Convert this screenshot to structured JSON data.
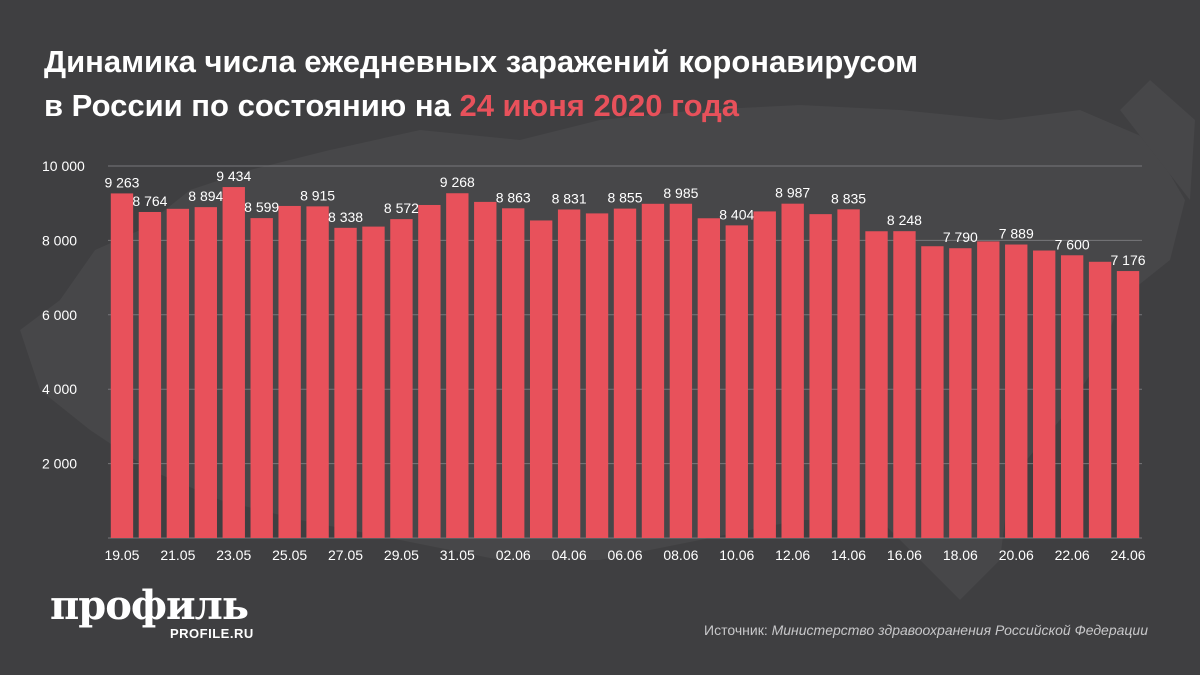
{
  "header": {
    "title_line1": "Динамика числа ежедневных заражений коронавирусом",
    "title_line2_prefix": "в России по состоянию на",
    "title_date": "24 июня 2020 года"
  },
  "colors": {
    "background": "#3f3f41",
    "bar": "#e8515b",
    "accent": "#e8515b",
    "grid": "#77777a",
    "text": "#ffffff"
  },
  "chart_data": {
    "type": "bar",
    "title": "Динамика числа ежедневных заражений коронавирусом в России по состоянию на 24 июня 2020 года",
    "xlabel": "",
    "ylabel": "",
    "ylim": [
      0,
      10000
    ],
    "yticks": [
      2000,
      4000,
      6000,
      8000,
      10000
    ],
    "ytick_labels": [
      "2 000",
      "4 000",
      "6 000",
      "8 000",
      "10 000"
    ],
    "grid": true,
    "categories": [
      "19.05",
      "20.05",
      "21.05",
      "22.05",
      "23.05",
      "24.05",
      "25.05",
      "26.05",
      "27.05",
      "28.05",
      "29.05",
      "30.05",
      "31.05",
      "01.06",
      "02.06",
      "03.06",
      "04.06",
      "05.06",
      "06.06",
      "07.06",
      "08.06",
      "09.06",
      "10.06",
      "11.06",
      "12.06",
      "13.06",
      "14.06",
      "15.06",
      "16.06",
      "17.06",
      "18.06",
      "19.06",
      "20.06",
      "21.06",
      "22.06",
      "23.06",
      "24.06"
    ],
    "xtick_labels": [
      "19.05",
      "21.05",
      "23.05",
      "25.05",
      "27.05",
      "29.05",
      "31.05",
      "02.06",
      "04.06",
      "06.06",
      "08.06",
      "10.06",
      "12.06",
      "14.06",
      "16.06",
      "18.06",
      "20.06",
      "22.06",
      "24.06"
    ],
    "values": [
      9263,
      8764,
      8849,
      8894,
      9434,
      8599,
      8926,
      8915,
      8338,
      8371,
      8572,
      8952,
      9268,
      9035,
      8863,
      8536,
      8831,
      8726,
      8855,
      8984,
      8985,
      8595,
      8404,
      8779,
      8987,
      8706,
      8835,
      8246,
      8248,
      7843,
      7790,
      7972,
      7889,
      7728,
      7600,
      7425,
      7176
    ],
    "labels": [
      "9 263",
      "8 764",
      "",
      "8 894",
      "9 434",
      "8 599",
      "",
      "8 915",
      "8 338",
      "",
      "8 572",
      "",
      "9 268",
      "",
      "8 863",
      "",
      "8 831",
      "",
      "8 855",
      "",
      "8 985",
      "",
      "8 404",
      "",
      "8 987",
      "",
      "8 835",
      "",
      "8 248",
      "",
      "7 790",
      "",
      "7 889",
      "",
      "7 600",
      "",
      "7 176"
    ]
  },
  "footer": {
    "logo": "профиль",
    "logo_sub": "PROFILE.RU",
    "source_prefix": "Источник:",
    "source_name": "Министерство здравоохранения Российской Федерации"
  }
}
